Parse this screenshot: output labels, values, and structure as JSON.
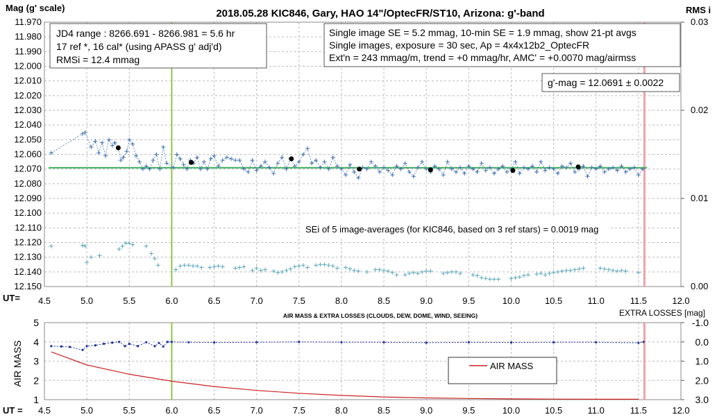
{
  "chart_data": [
    {
      "type": "scatter",
      "title": "2018.05.28  KIC846,  Gary,  HAO  14\"/OptecFR/ST10,  Arizona:  g'-band",
      "ylabel": "Mag (g' scale)",
      "xlabel": "UT=",
      "y2label": "RMS i",
      "xlim": [
        4.5,
        12.0
      ],
      "ylim": [
        12.15,
        11.97
      ],
      "y2lim": [
        0.0,
        0.03
      ],
      "y_reversed": true,
      "xticks": [
        "4.5",
        "5.0",
        "5.5",
        "6.0",
        "6.5",
        "7.0",
        "7.5",
        "8.0",
        "8.5",
        "9.0",
        "9.5",
        "10.0",
        "10.5",
        "11.0",
        "11.5",
        "12.0"
      ],
      "yticks": [
        "11.970",
        "11.980",
        "11.990",
        "12.000",
        "12.010",
        "12.020",
        "12.030",
        "12.040",
        "12.050",
        "12.060",
        "12.070",
        "12.080",
        "12.090",
        "12.100",
        "12.110",
        "12.120",
        "12.130",
        "12.140",
        "12.150"
      ],
      "y2ticks": [
        "0.03",
        "0.02",
        "0.01",
        "0.00"
      ],
      "grid": true,
      "colors": {
        "mag": "#3B6FB0",
        "avg": "#000000",
        "rms": "#5AA6B8",
        "fit": "#3DAA5A",
        "uline": "#8CC63F",
        "extra": "#F0A0A8"
      },
      "vertical_lines": [
        6.0,
        11.57
      ],
      "fit_line": {
        "mag": 12.0691,
        "x": [
          4.55,
          11.6
        ]
      },
      "averages": {
        "x": [
          5.37,
          6.23,
          7.41,
          8.21,
          9.05,
          10.02,
          10.79
        ],
        "mag": [
          12.0555,
          12.0655,
          12.063,
          12.07,
          12.0705,
          12.071,
          12.0685
        ]
      },
      "series": [
        {
          "name": "mag",
          "x": [
            4.58,
            4.95,
            4.98,
            5.05,
            5.1,
            5.14,
            5.18,
            5.22,
            5.26,
            5.3,
            5.33,
            5.37,
            5.4,
            5.43,
            5.47,
            5.5,
            5.54,
            5.58,
            5.62,
            5.66,
            5.7,
            5.74,
            5.78,
            5.82,
            5.86,
            5.9,
            5.94,
            6.02,
            6.06,
            6.1,
            6.14,
            6.18,
            6.22,
            6.26,
            6.3,
            6.34,
            6.38,
            6.42,
            6.46,
            6.5,
            6.55,
            6.6,
            6.65,
            6.7,
            6.75,
            6.8,
            6.85,
            6.9,
            6.95,
            7.0,
            7.05,
            7.1,
            7.15,
            7.2,
            7.25,
            7.3,
            7.35,
            7.4,
            7.45,
            7.5,
            7.55,
            7.6,
            7.65,
            7.7,
            7.75,
            7.8,
            7.85,
            7.9,
            7.95,
            8.0,
            8.05,
            8.1,
            8.15,
            8.2,
            8.25,
            8.3,
            8.35,
            8.4,
            8.45,
            8.5,
            8.55,
            8.6,
            8.65,
            8.7,
            8.75,
            8.8,
            8.85,
            8.9,
            8.95,
            9.0,
            9.05,
            9.1,
            9.15,
            9.2,
            9.25,
            9.3,
            9.35,
            9.4,
            9.45,
            9.5,
            9.55,
            9.6,
            9.65,
            9.7,
            9.75,
            9.8,
            9.85,
            9.9,
            9.95,
            10.0,
            10.05,
            10.1,
            10.15,
            10.2,
            10.25,
            10.3,
            10.35,
            10.4,
            10.45,
            10.5,
            10.55,
            10.6,
            10.65,
            10.7,
            10.75,
            10.8,
            10.85,
            10.9,
            10.95,
            11.0,
            11.05,
            11.1,
            11.15,
            11.2,
            11.25,
            11.3,
            11.35,
            11.4,
            11.45,
            11.5,
            11.55
          ],
          "y": [
            12.059,
            12.046,
            12.045,
            12.055,
            12.051,
            12.059,
            12.052,
            12.061,
            12.05,
            12.054,
            12.052,
            12.056,
            12.064,
            12.062,
            12.058,
            12.05,
            12.053,
            12.061,
            12.065,
            12.07,
            12.068,
            12.07,
            12.064,
            12.06,
            12.07,
            12.055,
            12.066,
            12.069,
            12.06,
            12.063,
            12.067,
            12.07,
            12.064,
            12.066,
            12.062,
            12.07,
            12.065,
            12.07,
            12.063,
            12.061,
            12.068,
            12.064,
            12.062,
            12.063,
            12.064,
            12.064,
            12.07,
            12.072,
            12.064,
            12.071,
            12.068,
            12.065,
            12.069,
            12.073,
            12.066,
            12.062,
            12.07,
            12.063,
            12.068,
            12.065,
            12.06,
            12.056,
            12.066,
            12.064,
            12.069,
            12.065,
            12.07,
            12.062,
            12.068,
            12.07,
            12.074,
            12.067,
            12.072,
            12.076,
            12.069,
            12.07,
            12.065,
            12.068,
            12.072,
            12.069,
            12.071,
            12.074,
            12.068,
            12.07,
            12.066,
            12.072,
            12.075,
            12.069,
            12.065,
            12.07,
            12.072,
            12.068,
            12.07,
            12.074,
            12.065,
            12.07,
            12.072,
            12.069,
            12.073,
            12.068,
            12.07,
            12.072,
            12.066,
            12.071,
            12.069,
            12.073,
            12.07,
            12.068,
            12.072,
            12.07,
            12.065,
            12.073,
            12.069,
            12.07,
            12.068,
            12.072,
            12.065,
            12.071,
            12.069,
            12.07,
            12.073,
            12.068,
            12.069,
            12.066,
            12.072,
            12.07,
            12.068,
            12.075,
            12.069,
            12.07,
            12.068,
            12.072,
            12.07,
            12.069,
            12.071,
            12.068,
            12.072,
            12.07,
            12.069,
            12.074,
            12.07
          ]
        },
        {
          "name": "rms",
          "x": [
            4.58,
            4.95,
            4.98,
            5.0,
            5.05,
            5.15,
            5.38,
            5.42,
            5.46,
            5.5,
            5.54,
            5.7,
            5.76,
            5.8,
            5.84,
            6.05,
            6.1,
            6.15,
            6.2,
            6.25,
            6.3,
            6.35,
            6.45,
            6.5,
            6.55,
            6.6,
            6.75,
            6.8,
            6.85,
            6.95,
            7.0,
            7.05,
            7.1,
            7.2,
            7.25,
            7.3,
            7.35,
            7.4,
            7.45,
            7.5,
            7.55,
            7.6,
            7.7,
            7.75,
            7.8,
            7.85,
            7.9,
            7.95,
            8.05,
            8.1,
            8.15,
            8.2,
            8.3,
            8.4,
            8.45,
            8.5,
            8.55,
            8.6,
            8.65,
            8.75,
            8.8,
            8.85,
            8.9,
            8.95,
            9.0,
            9.05,
            9.2,
            9.25,
            9.3,
            9.35,
            9.4,
            9.55,
            9.6,
            9.65,
            9.7,
            9.75,
            9.8,
            9.85,
            10.0,
            10.05,
            10.1,
            10.15,
            10.2,
            10.3,
            10.35,
            10.4,
            10.45,
            10.5,
            10.55,
            10.6,
            10.65,
            10.7,
            10.75,
            10.8,
            10.85,
            11.05,
            11.1,
            11.15,
            11.2,
            11.25,
            11.3,
            11.35,
            11.5
          ],
          "y": [
            12.1225,
            12.122,
            12.1225,
            12.1335,
            12.13,
            12.129,
            12.1245,
            12.1225,
            12.1205,
            12.1205,
            12.1215,
            12.1225,
            12.1275,
            12.131,
            12.1355,
            12.1385,
            12.136,
            12.1355,
            12.1355,
            12.136,
            12.136,
            12.137,
            12.137,
            12.1365,
            12.136,
            12.1365,
            12.1375,
            12.137,
            12.1365,
            12.139,
            12.1375,
            12.139,
            12.1385,
            12.1395,
            12.1405,
            12.14,
            12.139,
            12.138,
            12.1365,
            12.136,
            12.1355,
            12.137,
            12.1355,
            12.135,
            12.135,
            12.1355,
            12.136,
            12.1375,
            12.137,
            12.138,
            12.139,
            12.1395,
            12.14,
            12.1385,
            12.1385,
            12.139,
            12.1395,
            12.1405,
            12.142,
            12.142,
            12.141,
            12.1405,
            12.141,
            12.14,
            12.1395,
            12.1395,
            12.141,
            12.1405,
            12.14,
            12.14,
            12.141,
            12.142,
            12.1425,
            12.144,
            12.1445,
            12.145,
            12.145,
            12.145,
            12.1445,
            12.144,
            12.1435,
            12.1425,
            12.142,
            12.1415,
            12.141,
            12.142,
            12.141,
            12.1405,
            12.14,
            12.1395,
            12.139,
            12.139,
            12.1385,
            12.138,
            12.1375,
            12.1375,
            12.138,
            12.1385,
            12.139,
            12.1395,
            12.139,
            12.1395,
            12.1405
          ]
        }
      ],
      "annotations": [
        "JD4 range : 8266.691 - 8266.981 =  5.6  hr",
        "17 ref *, 16 cal* (using APASS g' adj'd)",
        "RMSi = 12.4 mmag",
        "Single image SE = 5.2 mmag, 10-min SE = 1.9 mmag, show  21-pt avgs",
        "Single images, exposure = 30 sec, Ap = 4x4x12b2_OptecFR",
        "Ext'n = 243 mmag/m, trend =  +0 mmag/hr, AMC' = +0.0070 mag/airmss",
        "g'-mag = 12.0691 ± 0.0022",
        "SEi of 5 image-averages (for KIC846, based on 3 ref stars) = 0.0019  mag"
      ]
    },
    {
      "type": "line",
      "title": "AIR MASS & EXTRA LOSSES (CLOUDS, DEW, DOME, WIND, SEEING)",
      "ylabel": "AIR MASS",
      "xlabel": "UT =",
      "y2label": "EXTRA LOSSES [mag]",
      "xlim": [
        4.5,
        12.0
      ],
      "ylim": [
        1,
        5
      ],
      "y2lim": [
        3.0,
        -1.0
      ],
      "xticks": [
        "4.5",
        "5.0",
        "5.5",
        "6.0",
        "6.5",
        "7.0",
        "7.5",
        "8.0",
        "8.5",
        "9.0",
        "9.5",
        "10.0",
        "10.5",
        "11.0",
        "11.5",
        "12.0"
      ],
      "yticks": [
        "1",
        "2",
        "3",
        "4",
        "5"
      ],
      "y2ticks": [
        "-1.0",
        "0.0",
        "1.0",
        "2.0",
        "3.0"
      ],
      "grid": true,
      "legend": "AIR MASS",
      "legend_position": "center-right",
      "colors": {
        "airmass": "#CC2222",
        "losses": "#1F2F9F",
        "uline": "#8CC63F",
        "extra": "#F0A0A8"
      },
      "series": [
        {
          "name": "AIR MASS",
          "x": [
            4.58,
            5.0,
            5.5,
            6.0,
            6.5,
            7.0,
            7.5,
            8.0,
            8.5,
            9.0,
            9.5,
            10.0,
            10.5,
            11.0,
            11.5
          ],
          "y": [
            3.48,
            2.8,
            2.32,
            1.96,
            1.68,
            1.48,
            1.33,
            1.22,
            1.14,
            1.09,
            1.06,
            1.04,
            1.03,
            1.02,
            1.02
          ]
        },
        {
          "name": "EXTRA LOSSES",
          "x": [
            4.58,
            4.7,
            4.8,
            4.95,
            5.0,
            5.1,
            5.2,
            5.3,
            5.38,
            5.45,
            5.5,
            5.6,
            5.7,
            5.8,
            5.85,
            5.9,
            5.95,
            6.0,
            6.2,
            6.5,
            7.0,
            7.5,
            8.0,
            8.5,
            9.0,
            9.5,
            10.0,
            10.5,
            11.0,
            11.5,
            11.56
          ],
          "y": [
            0.22,
            0.24,
            0.26,
            0.42,
            0.22,
            0.18,
            0.1,
            0.04,
            0.0,
            0.22,
            0.1,
            0.22,
            0.02,
            0.22,
            0.06,
            0.24,
            0.0,
            0.0,
            0.02,
            0.03,
            0.02,
            0.0,
            0.02,
            0.02,
            0.04,
            0.02,
            0.03,
            0.02,
            0.02,
            0.05,
            0.0
          ]
        }
      ]
    }
  ]
}
